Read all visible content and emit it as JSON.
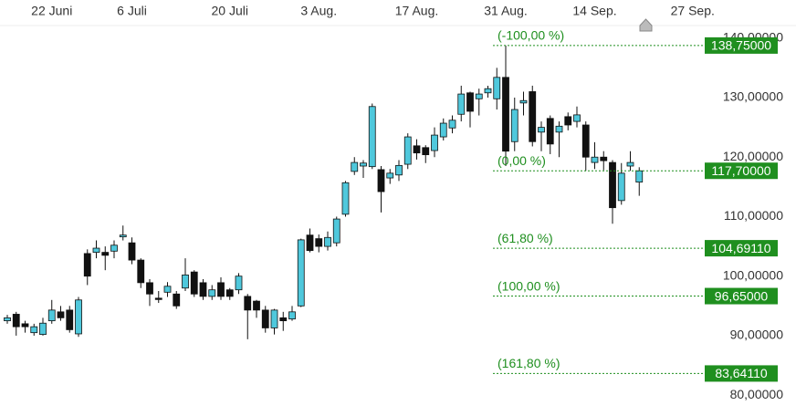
{
  "chart_data": {
    "type": "candlestick",
    "categories": [
      null,
      null,
      null,
      null,
      null,
      "22 Juni",
      null,
      null,
      null,
      null,
      null,
      null,
      null,
      null,
      "6 Juli",
      null,
      null,
      null,
      null,
      null,
      null,
      null,
      null,
      null,
      null,
      "20 Juli",
      null,
      null,
      null,
      null,
      null,
      null,
      null,
      null,
      null,
      "3 Aug.",
      null,
      null,
      null,
      null,
      null,
      null,
      null,
      null,
      null,
      null,
      "17 Aug.",
      null,
      null,
      null,
      null,
      null,
      null,
      null,
      null,
      null,
      "31 Aug.",
      null,
      null,
      null,
      null,
      null,
      null,
      null,
      null,
      null,
      "14 Sep.",
      null,
      null,
      null,
      null,
      null,
      null,
      null,
      null,
      null,
      null,
      "27 Sep."
    ],
    "open": [
      92.5,
      93.6,
      92,
      90.5,
      90.2,
      92.5,
      94,
      94.3,
      90.3,
      103.8,
      104,
      104,
      104.2,
      106.6,
      105.6,
      102.7,
      98.9,
      96.3,
      97.3,
      97,
      98,
      100.7,
      98.9,
      96.6,
      98.9,
      97.7,
      97.7,
      96.6,
      95.8,
      94.3,
      91.3,
      93,
      92.8,
      95,
      106.9,
      106.3,
      105,
      105.6,
      110.4,
      117.6,
      118.5,
      118.4,
      117.9,
      116.5,
      117,
      118.8,
      121.9,
      121.6,
      121.1,
      123.4,
      124.9,
      127.2,
      130.8,
      129.8,
      130.8,
      129.8,
      133.4,
      122.6,
      129.1,
      131,
      124.2,
      126.5,
      124.2,
      126.8,
      126,
      125.4,
      119.1,
      120,
      119.1,
      112.7,
      118.5,
      115.8,
      null,
      null,
      null,
      null,
      null,
      null
    ],
    "high": [
      93.5,
      94,
      92.5,
      92,
      93,
      96,
      95,
      95,
      96.5,
      104.5,
      106,
      105,
      106,
      108.5,
      106.5,
      103,
      99.5,
      97.5,
      99,
      97.5,
      103,
      101,
      99.5,
      98.5,
      99.8,
      98,
      100.5,
      97,
      96,
      95,
      94.5,
      94,
      95,
      106.3,
      108,
      107,
      107.5,
      110,
      116,
      120,
      119.5,
      129,
      118.5,
      118,
      119.5,
      124,
      123,
      122,
      125,
      126.5,
      127,
      132,
      131,
      131.5,
      132,
      135,
      138.75,
      130,
      131,
      132,
      126,
      127,
      126,
      127.5,
      128.5,
      126,
      122.5,
      121,
      119.5,
      119,
      121,
      118.3,
      null,
      null,
      null,
      null,
      null,
      null
    ],
    "low": [
      92,
      90,
      90.5,
      90,
      90,
      92,
      92.5,
      90.5,
      89.8,
      98.5,
      103,
      101,
      103,
      106,
      102,
      98,
      95,
      95.5,
      96.5,
      94.5,
      97.5,
      96.5,
      96,
      96,
      96,
      96,
      97,
      89.4,
      93,
      90.5,
      90.2,
      90.8,
      92.5,
      94.8,
      104,
      104,
      104.3,
      105,
      110,
      117,
      116.5,
      118,
      110.7,
      115.5,
      116,
      118,
      119.6,
      119,
      120,
      122.8,
      124,
      126,
      125,
      127,
      130,
      128,
      118.5,
      121,
      127,
      121.8,
      121,
      120.5,
      120,
      124.5,
      125,
      117.7,
      118,
      117.8,
      108.8,
      112,
      117.7,
      113.5,
      null,
      null,
      null,
      null,
      null,
      null
    ],
    "close": [
      93,
      91.5,
      91.5,
      91.5,
      92.1,
      94.3,
      93,
      91,
      96,
      100,
      104.7,
      103.5,
      105.2,
      106.9,
      102.7,
      98.9,
      97,
      96.1,
      98.3,
      95,
      100.2,
      97,
      96.6,
      97.7,
      96.6,
      96.6,
      100,
      94.3,
      94.3,
      91.3,
      94.3,
      92.5,
      94,
      106.1,
      104.3,
      105,
      106.5,
      109.6,
      115.7,
      119.1,
      119,
      128.5,
      114.2,
      117.3,
      118.6,
      123.4,
      120.7,
      120.4,
      123.7,
      125.7,
      126.2,
      130.6,
      127.7,
      130.6,
      131.5,
      133.4,
      121,
      128,
      129.5,
      122.6,
      125,
      122.2,
      125.2,
      125.4,
      127.1,
      120,
      120,
      119.4,
      111.5,
      117.3,
      119.1,
      117.7,
      null,
      null,
      null,
      null,
      null,
      null
    ],
    "up_color": "#4fc8dc",
    "down_color": "#111111",
    "ylim": [
      76.5,
      146.4
    ],
    "yticks": [
      {
        "value": 80,
        "label": "80,00000"
      },
      {
        "value": 90,
        "label": "90,00000"
      },
      {
        "value": 100,
        "label": "100,00000"
      },
      {
        "value": 110,
        "label": "110,00000"
      },
      {
        "value": 120,
        "label": "120,00000"
      },
      {
        "value": 130,
        "label": "130,00000"
      },
      {
        "value": 140,
        "label": "140,00000"
      }
    ],
    "levels": [
      {
        "label": "(-100,00 %)",
        "value": 138.75,
        "value_label": "138,75000"
      },
      {
        "label": "(0,00 %)",
        "value": 117.7,
        "value_label": "117,70000"
      },
      {
        "label": "(61,80 %)",
        "value": 104.6911,
        "value_label": "104,69110"
      },
      {
        "label": "(100,00 %)",
        "value": 96.65,
        "value_label": "96,65000"
      },
      {
        "label": "(161,80 %)",
        "value": 83.6411,
        "value_label": "83,64110"
      }
    ],
    "level_color": "#1f8f1f",
    "grid": false
  }
}
